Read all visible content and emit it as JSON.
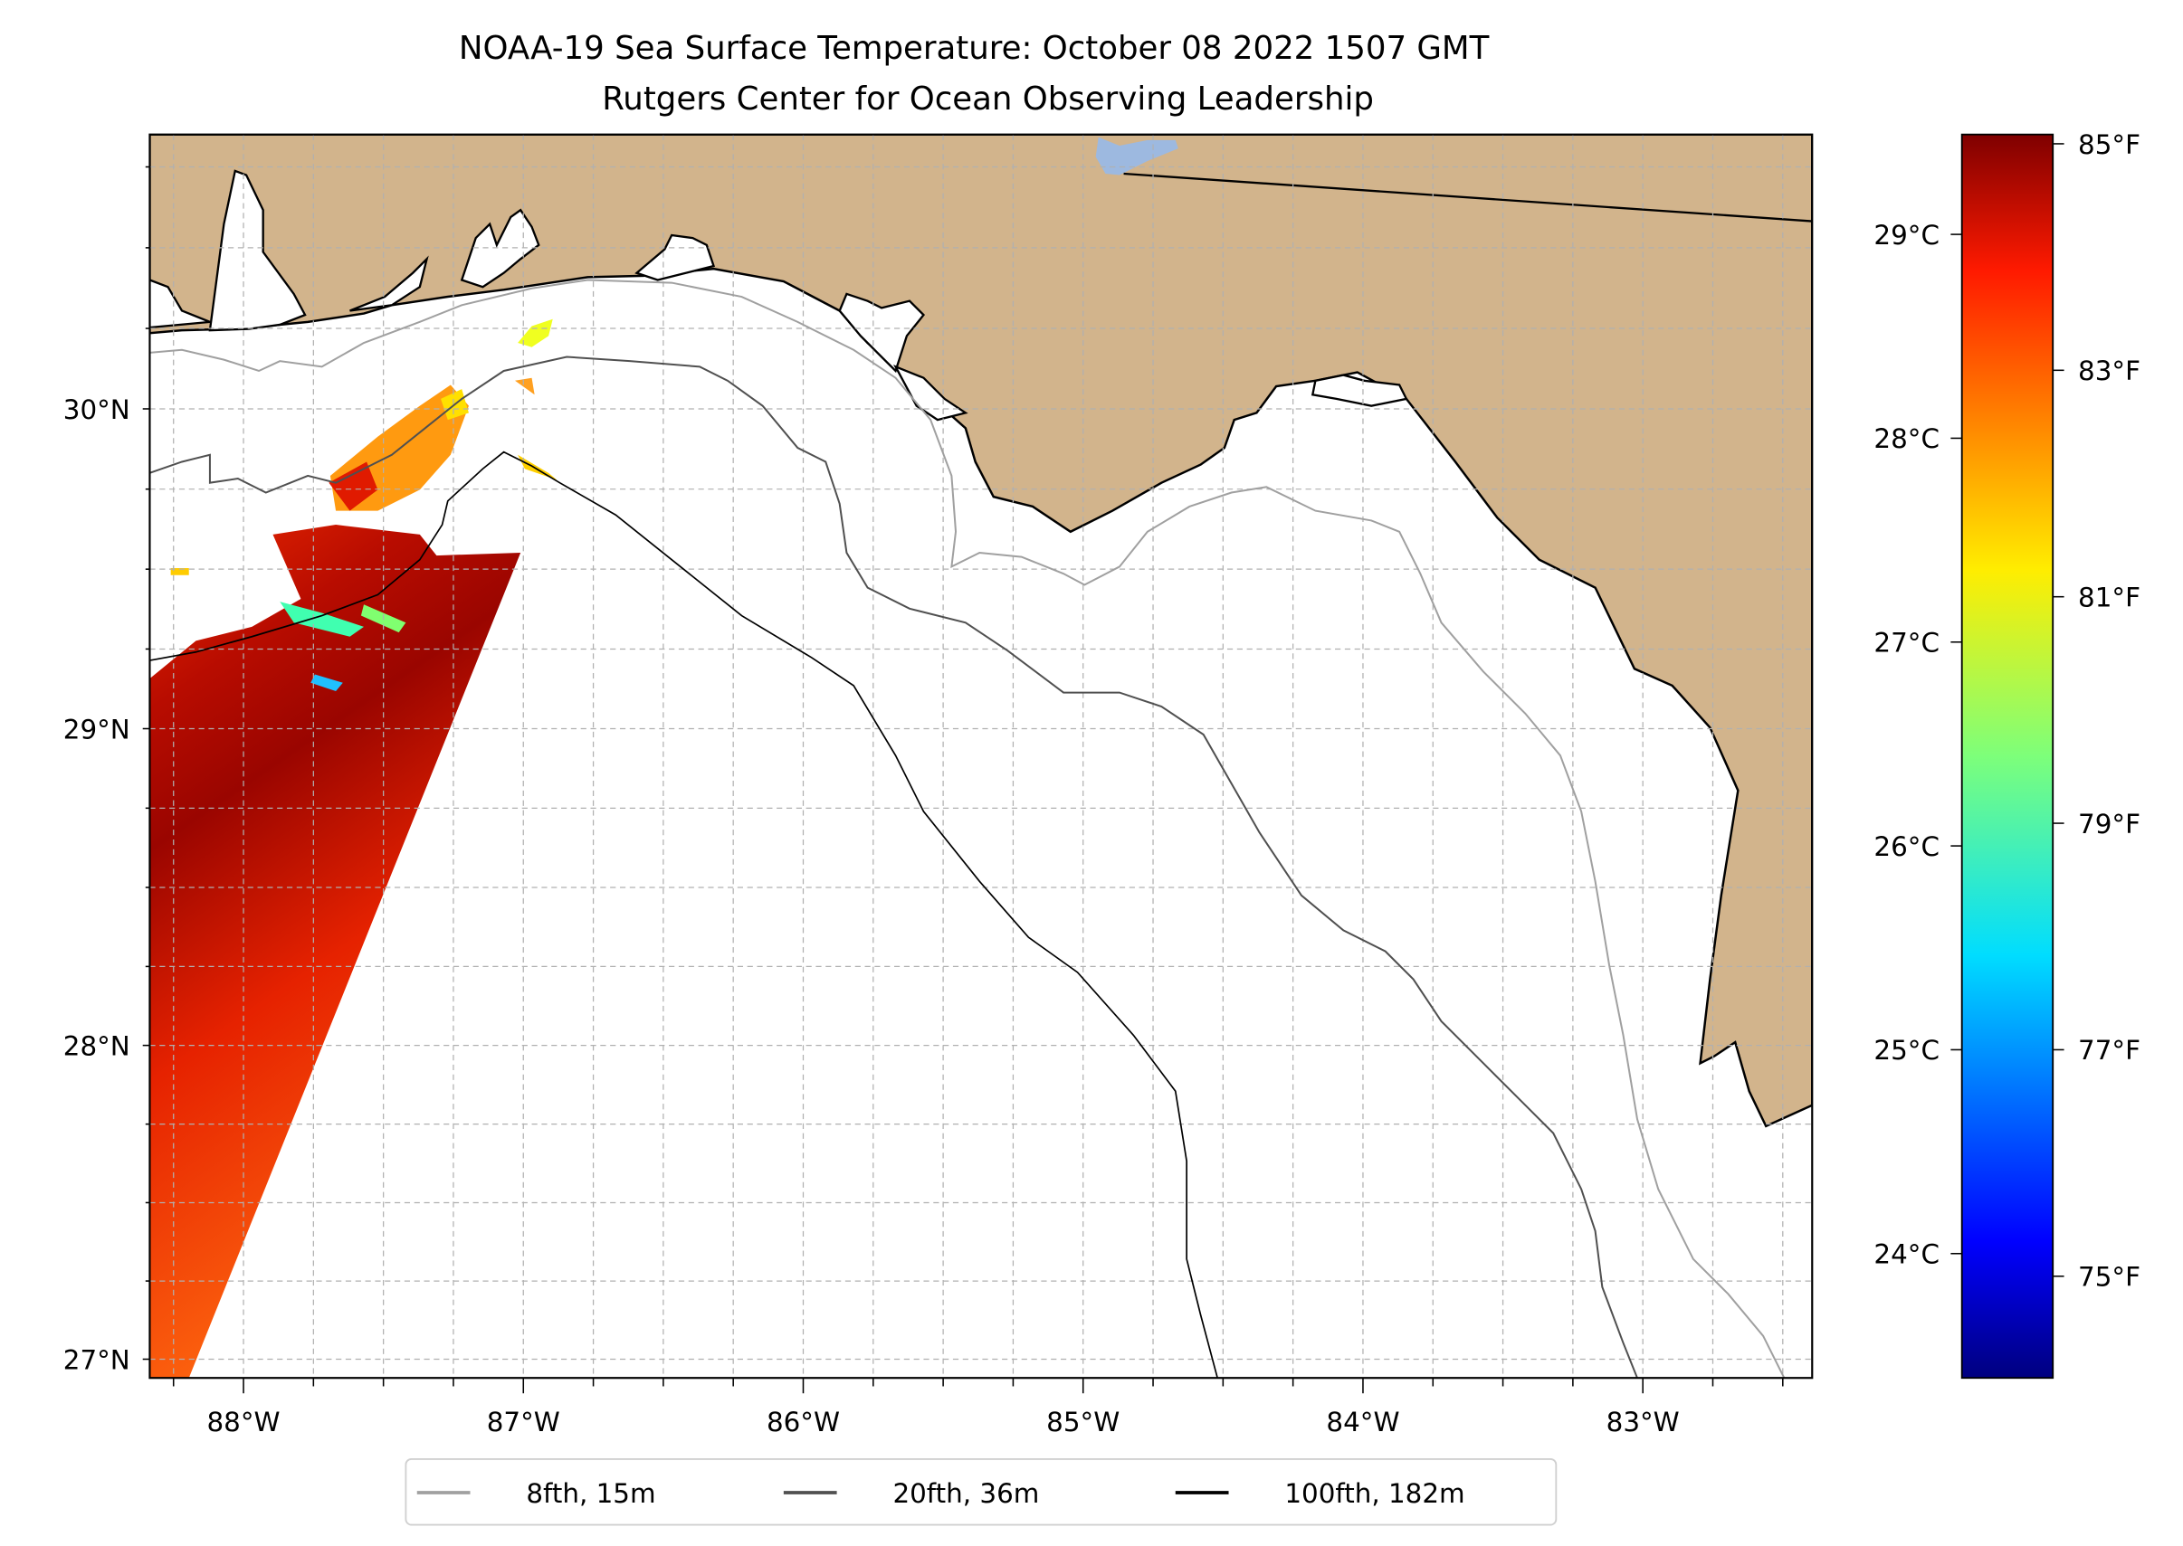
{
  "chart_data": {
    "type": "heatmap",
    "title": "NOAA-19 Sea Surface Temperature: October 08 2022 1507 GMT",
    "subtitle": "Rutgers Center for Ocean Observing Leadership",
    "projection": "mercator",
    "lon_range": [
      -88.335,
      -82.395
    ],
    "lat_range": [
      26.94,
      30.85
    ],
    "grid": true,
    "grid_step_deg": 0.25,
    "x_ticks": [
      {
        "value": -88,
        "label": "88°W"
      },
      {
        "value": -87,
        "label": "87°W"
      },
      {
        "value": -86,
        "label": "86°W"
      },
      {
        "value": -85,
        "label": "85°W"
      },
      {
        "value": -84,
        "label": "84°W"
      },
      {
        "value": -83,
        "label": "83°W"
      }
    ],
    "y_ticks": [
      {
        "value": 30,
        "label": "30°N"
      },
      {
        "value": 29,
        "label": "29°N"
      },
      {
        "value": 28,
        "label": "28°N"
      },
      {
        "value": 27,
        "label": "27°N"
      }
    ],
    "colorbar": {
      "colormap": "jet",
      "units": "°C",
      "vmin": 23.39,
      "vmax": 29.49,
      "celsius_ticks": [
        {
          "value": 29,
          "label": "29°C"
        },
        {
          "value": 28,
          "label": "28°C"
        },
        {
          "value": 27,
          "label": "27°C"
        },
        {
          "value": 26,
          "label": "26°C"
        },
        {
          "value": 25,
          "label": "25°C"
        },
        {
          "value": 24,
          "label": "24°C"
        }
      ],
      "fahrenheit_ticks": [
        {
          "value": 85,
          "label": "85°F"
        },
        {
          "value": 83,
          "label": "83°F"
        },
        {
          "value": 81,
          "label": "81°F"
        },
        {
          "value": 79,
          "label": "79°F"
        },
        {
          "value": 77,
          "label": "77°F"
        },
        {
          "value": 75,
          "label": "75°F"
        }
      ]
    },
    "legend": {
      "placement": "bottom-center",
      "entries": [
        {
          "label": "8fth, 15m",
          "color": "#a0a0a0"
        },
        {
          "label": "20fth, 36m",
          "color": "#505050"
        },
        {
          "label": "100fth, 182m",
          "color": "#000000"
        }
      ]
    },
    "colors": {
      "land": "#d2b48c",
      "lake": "#9db9e0",
      "ocean": "#ffffff"
    }
  }
}
